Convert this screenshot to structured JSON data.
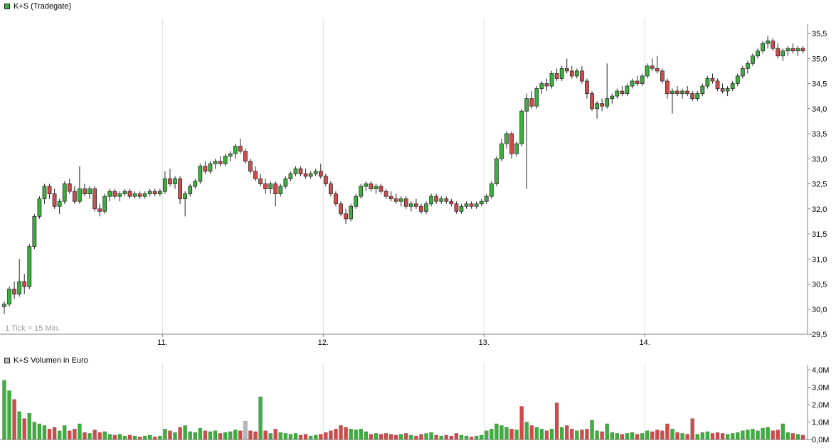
{
  "colors": {
    "up": "#3cb03c",
    "down": "#d24b4b",
    "neutral": "#b8b8b8",
    "wick": "#222222",
    "axis": "#808080",
    "grid": "#dedede",
    "label": "#000000",
    "note": "#9b9b9b",
    "background": "#ffffff"
  },
  "chart_data": [
    {
      "type": "candlestick",
      "title": "K+S (Tradegate)",
      "note": "1 Tick = 15 Min.",
      "interval_minutes": 15,
      "x_axis": {
        "day_labels": [
          "11.",
          "12.",
          "13.",
          "14."
        ],
        "day_start_indices": [
          32,
          64,
          96,
          128
        ]
      },
      "y_axis": {
        "tick_labels": [
          "35,5",
          "35,0",
          "34,5",
          "34,0",
          "33,5",
          "33,0",
          "32,5",
          "32,0",
          "31,5",
          "31,0",
          "30,5",
          "30,0",
          "29,5"
        ],
        "tick_values": [
          35.5,
          35.0,
          34.5,
          34.0,
          33.5,
          33.0,
          32.5,
          32.0,
          31.5,
          31.0,
          30.5,
          30.0,
          29.5
        ],
        "range": [
          29.5,
          35.5
        ]
      },
      "ohlc": [
        [
          30.05,
          30.15,
          29.9,
          30.1
        ],
        [
          30.1,
          30.45,
          30.05,
          30.4
        ],
        [
          30.4,
          30.55,
          30.2,
          30.3
        ],
        [
          30.3,
          31.0,
          30.25,
          30.55
        ],
        [
          30.55,
          30.7,
          30.3,
          30.45
        ],
        [
          30.45,
          31.3,
          30.4,
          31.25
        ],
        [
          31.25,
          31.9,
          31.2,
          31.85
        ],
        [
          31.85,
          32.25,
          31.8,
          32.2
        ],
        [
          32.2,
          32.5,
          32.1,
          32.45
        ],
        [
          32.45,
          32.5,
          32.2,
          32.3
        ],
        [
          32.3,
          32.4,
          32.0,
          32.05
        ],
        [
          32.05,
          32.2,
          31.9,
          32.15
        ],
        [
          32.15,
          32.55,
          32.1,
          32.5
        ],
        [
          32.5,
          32.6,
          32.3,
          32.35
        ],
        [
          32.35,
          32.45,
          32.1,
          32.15
        ],
        [
          32.15,
          32.85,
          32.1,
          32.4
        ],
        [
          32.4,
          32.5,
          32.25,
          32.3
        ],
        [
          32.3,
          32.45,
          32.2,
          32.4
        ],
        [
          32.4,
          32.45,
          31.95,
          32.0
        ],
        [
          32.0,
          32.1,
          31.85,
          31.95
        ],
        [
          31.95,
          32.3,
          31.9,
          32.25
        ],
        [
          32.25,
          32.4,
          32.15,
          32.35
        ],
        [
          32.35,
          32.4,
          32.2,
          32.25
        ],
        [
          32.25,
          32.35,
          32.15,
          32.3
        ],
        [
          32.3,
          32.4,
          32.25,
          32.35
        ],
        [
          32.35,
          32.4,
          32.2,
          32.25
        ],
        [
          32.25,
          32.35,
          32.2,
          32.3
        ],
        [
          32.3,
          32.35,
          32.2,
          32.25
        ],
        [
          32.25,
          32.35,
          32.2,
          32.3
        ],
        [
          32.3,
          32.4,
          32.25,
          32.35
        ],
        [
          32.35,
          32.4,
          32.25,
          32.3
        ],
        [
          32.3,
          32.4,
          32.25,
          32.35
        ],
        [
          32.35,
          32.75,
          32.3,
          32.6
        ],
        [
          32.6,
          32.8,
          32.45,
          32.5
        ],
        [
          32.5,
          32.65,
          32.4,
          32.6
        ],
        [
          32.6,
          32.65,
          32.1,
          32.2
        ],
        [
          32.2,
          32.35,
          31.85,
          32.3
        ],
        [
          32.3,
          32.5,
          32.25,
          32.45
        ],
        [
          32.45,
          32.6,
          32.4,
          32.55
        ],
        [
          32.55,
          32.9,
          32.5,
          32.85
        ],
        [
          32.85,
          32.95,
          32.7,
          32.75
        ],
        [
          32.75,
          32.95,
          32.7,
          32.9
        ],
        [
          32.9,
          33.0,
          32.8,
          32.95
        ],
        [
          32.95,
          33.05,
          32.85,
          32.9
        ],
        [
          32.9,
          33.1,
          32.85,
          33.05
        ],
        [
          33.05,
          33.15,
          32.95,
          33.1
        ],
        [
          33.1,
          33.3,
          33.0,
          33.25
        ],
        [
          33.25,
          33.4,
          33.1,
          33.15
        ],
        [
          33.15,
          33.2,
          32.9,
          32.95
        ],
        [
          32.95,
          33.0,
          32.7,
          32.75
        ],
        [
          32.75,
          32.85,
          32.55,
          32.6
        ],
        [
          32.6,
          32.7,
          32.45,
          32.5
        ],
        [
          32.5,
          32.6,
          32.3,
          32.4
        ],
        [
          32.4,
          32.55,
          32.3,
          32.5
        ],
        [
          32.5,
          32.55,
          32.05,
          32.3
        ],
        [
          32.3,
          32.5,
          32.25,
          32.45
        ],
        [
          32.45,
          32.65,
          32.4,
          32.6
        ],
        [
          32.6,
          32.75,
          32.55,
          32.7
        ],
        [
          32.7,
          32.85,
          32.65,
          32.8
        ],
        [
          32.8,
          32.85,
          32.65,
          32.7
        ],
        [
          32.7,
          32.8,
          32.6,
          32.65
        ],
        [
          32.65,
          32.75,
          32.6,
          32.7
        ],
        [
          32.7,
          32.8,
          32.65,
          32.75
        ],
        [
          32.75,
          32.9,
          32.6,
          32.65
        ],
        [
          32.65,
          32.7,
          32.45,
          32.5
        ],
        [
          32.5,
          32.55,
          32.25,
          32.3
        ],
        [
          32.3,
          32.35,
          32.05,
          32.1
        ],
        [
          32.1,
          32.15,
          31.85,
          31.9
        ],
        [
          31.9,
          32.0,
          31.7,
          31.8
        ],
        [
          31.8,
          32.1,
          31.75,
          32.05
        ],
        [
          32.05,
          32.3,
          32.0,
          32.25
        ],
        [
          32.25,
          32.5,
          32.2,
          32.45
        ],
        [
          32.45,
          32.55,
          32.35,
          32.5
        ],
        [
          32.5,
          32.55,
          32.35,
          32.4
        ],
        [
          32.4,
          32.5,
          32.3,
          32.45
        ],
        [
          32.45,
          32.5,
          32.3,
          32.35
        ],
        [
          32.35,
          32.4,
          32.2,
          32.25
        ],
        [
          32.25,
          32.35,
          32.15,
          32.2
        ],
        [
          32.2,
          32.3,
          32.1,
          32.15
        ],
        [
          32.15,
          32.25,
          32.05,
          32.2
        ],
        [
          32.2,
          32.25,
          32.0,
          32.05
        ],
        [
          32.05,
          32.15,
          31.95,
          32.1
        ],
        [
          32.1,
          32.2,
          32.0,
          32.05
        ],
        [
          32.05,
          32.1,
          31.9,
          31.95
        ],
        [
          31.95,
          32.15,
          31.9,
          32.1
        ],
        [
          32.1,
          32.3,
          32.05,
          32.25
        ],
        [
          32.25,
          32.3,
          32.1,
          32.15
        ],
        [
          32.15,
          32.25,
          32.1,
          32.2
        ],
        [
          32.2,
          32.25,
          32.1,
          32.15
        ],
        [
          32.15,
          32.2,
          32.05,
          32.1
        ],
        [
          32.1,
          32.15,
          31.9,
          31.95
        ],
        [
          31.95,
          32.1,
          31.9,
          32.05
        ],
        [
          32.05,
          32.15,
          32.0,
          32.1
        ],
        [
          32.1,
          32.15,
          32.0,
          32.05
        ],
        [
          32.05,
          32.15,
          32.0,
          32.1
        ],
        [
          32.1,
          32.2,
          32.05,
          32.15
        ],
        [
          32.15,
          32.3,
          32.1,
          32.25
        ],
        [
          32.25,
          32.55,
          32.2,
          32.5
        ],
        [
          32.5,
          33.05,
          32.45,
          33.0
        ],
        [
          33.0,
          33.4,
          32.95,
          33.3
        ],
        [
          33.3,
          33.55,
          33.2,
          33.5
        ],
        [
          33.5,
          33.55,
          33.0,
          33.1
        ],
        [
          33.1,
          33.35,
          33.05,
          33.3
        ],
        [
          33.3,
          34.0,
          33.25,
          33.95
        ],
        [
          33.95,
          34.3,
          32.4,
          34.2
        ],
        [
          34.2,
          34.35,
          34.0,
          34.05
        ],
        [
          34.05,
          34.45,
          34.0,
          34.4
        ],
        [
          34.4,
          34.55,
          34.3,
          34.5
        ],
        [
          34.5,
          34.6,
          34.35,
          34.45
        ],
        [
          34.45,
          34.75,
          34.4,
          34.7
        ],
        [
          34.7,
          34.8,
          34.55,
          34.6
        ],
        [
          34.6,
          34.85,
          34.55,
          34.8
        ],
        [
          34.8,
          35.0,
          34.7,
          34.75
        ],
        [
          34.75,
          34.85,
          34.6,
          34.65
        ],
        [
          34.65,
          34.8,
          34.6,
          34.75
        ],
        [
          34.75,
          34.85,
          34.5,
          34.55
        ],
        [
          34.55,
          34.6,
          34.2,
          34.3
        ],
        [
          34.3,
          34.35,
          33.95,
          34.0
        ],
        [
          34.0,
          34.15,
          33.8,
          34.1
        ],
        [
          34.1,
          34.2,
          33.95,
          34.05
        ],
        [
          34.05,
          34.9,
          34.0,
          34.2
        ],
        [
          34.2,
          34.3,
          34.1,
          34.25
        ],
        [
          34.25,
          34.4,
          34.2,
          34.35
        ],
        [
          34.35,
          34.45,
          34.25,
          34.3
        ],
        [
          34.3,
          34.5,
          34.25,
          34.45
        ],
        [
          34.45,
          34.6,
          34.4,
          34.55
        ],
        [
          34.55,
          34.65,
          34.45,
          34.5
        ],
        [
          34.5,
          34.7,
          34.45,
          34.65
        ],
        [
          34.65,
          34.9,
          34.6,
          34.85
        ],
        [
          34.85,
          35.0,
          34.75,
          34.8
        ],
        [
          34.8,
          35.05,
          34.7,
          34.75
        ],
        [
          34.75,
          34.8,
          34.5,
          34.55
        ],
        [
          34.55,
          34.6,
          34.2,
          34.3
        ],
        [
          34.3,
          34.4,
          33.9,
          34.35
        ],
        [
          34.35,
          34.45,
          34.25,
          34.3
        ],
        [
          34.3,
          34.4,
          34.2,
          34.35
        ],
        [
          34.35,
          34.45,
          34.25,
          34.3
        ],
        [
          34.3,
          34.35,
          34.15,
          34.2
        ],
        [
          34.2,
          34.35,
          34.15,
          34.3
        ],
        [
          34.3,
          34.5,
          34.25,
          34.45
        ],
        [
          34.45,
          34.65,
          34.4,
          34.6
        ],
        [
          34.6,
          34.7,
          34.5,
          34.55
        ],
        [
          34.55,
          34.6,
          34.35,
          34.4
        ],
        [
          34.4,
          34.5,
          34.3,
          34.35
        ],
        [
          34.35,
          34.45,
          34.25,
          34.4
        ],
        [
          34.4,
          34.55,
          34.35,
          34.5
        ],
        [
          34.5,
          34.7,
          34.45,
          34.65
        ],
        [
          34.65,
          34.85,
          34.6,
          34.8
        ],
        [
          34.8,
          34.95,
          34.7,
          34.9
        ],
        [
          34.9,
          35.1,
          34.85,
          35.05
        ],
        [
          35.05,
          35.2,
          35.0,
          35.15
        ],
        [
          35.15,
          35.35,
          35.1,
          35.3
        ],
        [
          35.3,
          35.45,
          35.2,
          35.35
        ],
        [
          35.35,
          35.4,
          35.15,
          35.2
        ],
        [
          35.2,
          35.3,
          35.0,
          35.05
        ],
        [
          35.05,
          35.2,
          34.95,
          35.15
        ],
        [
          35.15,
          35.25,
          35.05,
          35.2
        ],
        [
          35.2,
          35.3,
          35.1,
          35.15
        ],
        [
          35.15,
          35.25,
          35.05,
          35.2
        ],
        [
          35.2,
          35.25,
          35.1,
          35.15
        ]
      ]
    },
    {
      "type": "bar",
      "title": "K+S Volumen in Euro",
      "y_axis": {
        "tick_labels": [
          "4,0M",
          "3,0M",
          "2,0M",
          "1,0M",
          "0,0M"
        ],
        "tick_values": [
          4,
          3,
          2,
          1,
          0
        ],
        "range": [
          0,
          4
        ]
      },
      "values": [
        3.4,
        2.8,
        2.3,
        1.6,
        1.2,
        1.5,
        1.0,
        0.9,
        0.8,
        0.6,
        0.7,
        0.5,
        0.8,
        0.5,
        0.6,
        0.9,
        0.4,
        0.35,
        0.55,
        0.4,
        0.45,
        0.3,
        0.25,
        0.3,
        0.2,
        0.25,
        0.2,
        0.15,
        0.2,
        0.25,
        0.15,
        0.2,
        0.6,
        0.5,
        0.4,
        0.7,
        0.8,
        0.45,
        0.4,
        0.65,
        0.5,
        0.45,
        0.5,
        0.35,
        0.4,
        0.45,
        0.55,
        0.5,
        1.05,
        0.5,
        0.45,
        2.45,
        0.5,
        0.35,
        0.6,
        0.4,
        0.35,
        0.3,
        0.35,
        0.25,
        0.3,
        0.2,
        0.25,
        0.3,
        0.4,
        0.5,
        0.6,
        0.8,
        0.7,
        0.6,
        0.55,
        0.6,
        0.45,
        0.3,
        0.35,
        0.3,
        0.35,
        0.3,
        0.25,
        0.3,
        0.35,
        0.25,
        0.2,
        0.3,
        0.35,
        0.4,
        0.25,
        0.2,
        0.25,
        0.2,
        0.35,
        0.25,
        0.2,
        0.15,
        0.2,
        0.25,
        0.5,
        0.6,
        0.9,
        0.8,
        0.7,
        0.6,
        0.55,
        1.9,
        1.0,
        0.8,
        0.7,
        0.6,
        0.5,
        0.6,
        2.1,
        0.7,
        0.8,
        0.6,
        0.5,
        0.55,
        0.6,
        1.1,
        0.5,
        0.45,
        0.9,
        0.4,
        0.35,
        0.3,
        0.35,
        0.4,
        0.3,
        0.35,
        0.5,
        0.45,
        0.55,
        0.5,
        0.9,
        0.6,
        0.4,
        0.35,
        0.3,
        1.2,
        0.3,
        0.4,
        0.45,
        0.35,
        0.4,
        0.35,
        0.3,
        0.35,
        0.4,
        0.5,
        0.55,
        0.6,
        0.5,
        0.65,
        0.7,
        0.5,
        0.55,
        0.9,
        0.4,
        0.35,
        0.3,
        0.25
      ],
      "color_overrides": {
        "48": "neutral",
        "51": "up",
        "103": "down",
        "110": "down",
        "117": "up",
        "137": "down"
      }
    }
  ]
}
